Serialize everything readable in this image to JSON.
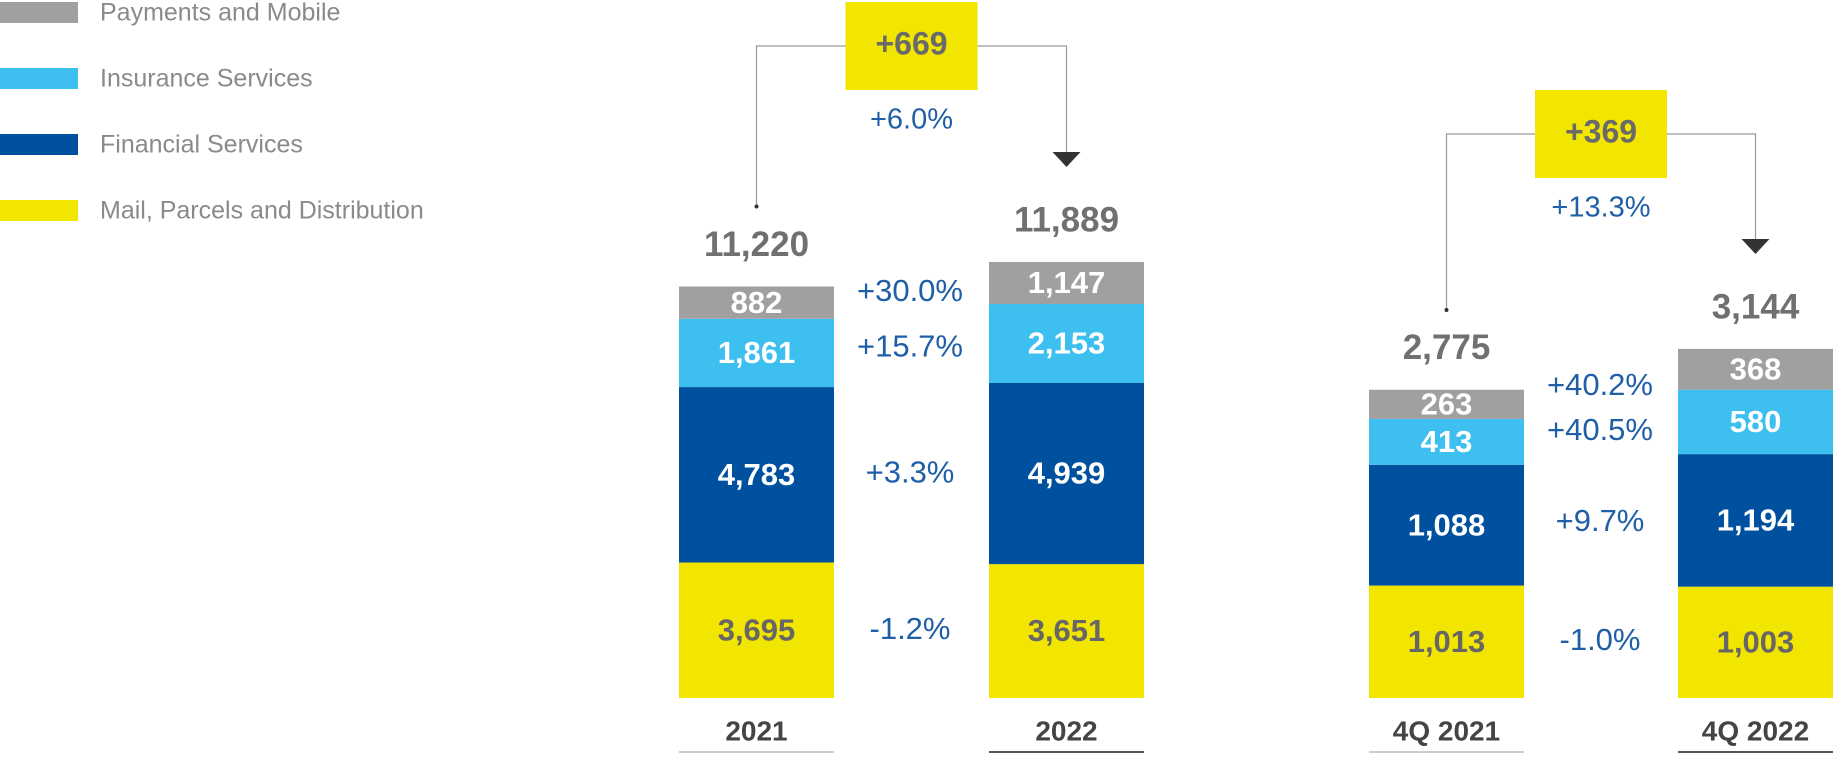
{
  "chart_data": [
    {
      "type": "stacked-bar",
      "categories": [
        "2021",
        "2022"
      ],
      "series": [
        {
          "name": "Mail, Parcels and Distribution",
          "color": "#f2e500",
          "values": [
            3695,
            3651
          ],
          "value_labels": [
            "3,695",
            "3,651"
          ]
        },
        {
          "name": "Financial Services",
          "color": "#0050a0",
          "values": [
            4783,
            4939
          ],
          "value_labels": [
            "4,783",
            "4,939"
          ]
        },
        {
          "name": "Insurance Services",
          "color": "#3dbfef",
          "values": [
            1861,
            2153
          ],
          "value_labels": [
            "1,861",
            "2,153"
          ]
        },
        {
          "name": "Payments and Mobile",
          "color": "#a0a0a0",
          "values": [
            882,
            1147
          ],
          "value_labels": [
            "882",
            "1,147"
          ]
        }
      ],
      "totals": [
        11220,
        11889
      ],
      "total_labels": [
        "11,220",
        "11,889"
      ],
      "growth": [
        -1.2,
        3.3,
        15.7,
        30.0
      ],
      "growth_labels": [
        "-1.2%",
        "+3.3%",
        "+15.7%",
        "+30.0%"
      ],
      "change": 669,
      "change_label": "+669",
      "change_pct": 6.0,
      "change_pct_label": "+6.0%"
    },
    {
      "type": "stacked-bar",
      "categories": [
        "4Q 2021",
        "4Q 2022"
      ],
      "series": [
        {
          "color": "#f2e500",
          "values": [
            1013,
            1003
          ],
          "value_labels": [
            "1,013",
            "1,003"
          ]
        },
        {
          "color": "#0050a0",
          "values": [
            1088,
            1194
          ],
          "value_labels": [
            "1,088",
            "1,194"
          ]
        },
        {
          "color": "#3dbfef",
          "values": [
            413,
            580
          ]
        },
        {
          "color": "#a0a0a0",
          "values": [
            263,
            368
          ]
        }
      ],
      "totals": [
        2775,
        3144
      ],
      "total_labels": [
        "2,775",
        "3,144"
      ],
      "growth": [
        -1.0,
        9.7,
        40.5,
        40.2
      ],
      "growth_labels": [
        "-1.0%",
        "+9.7%",
        "+40.5%",
        "+40.2%"
      ],
      "change": 369,
      "change_label": "+369",
      "change_pct": 13.3,
      "change_pct_label": "+13.3%"
    }
  ]
}
